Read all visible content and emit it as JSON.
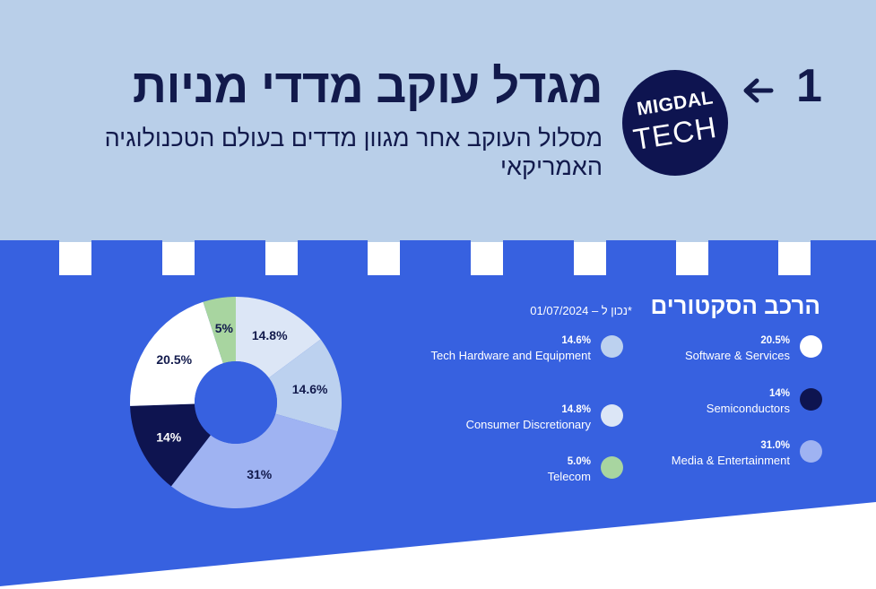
{
  "header": {
    "title": "מגדל עוקב מדדי מניות",
    "subtitle": "מסלול העוקב אחר מגוון מדדים בעולם הטכנולוגיה האמריקאי",
    "page_number": "1",
    "logo": {
      "line1": "MIGDAL",
      "line2": "TECH"
    }
  },
  "legend": {
    "title": "הרכב הסקטורים",
    "date_note": "*נכון ל – 01/07/2024",
    "items": [
      {
        "pct": "20.5%",
        "label": "Software & Services",
        "color": "#ffffff"
      },
      {
        "pct": "14%",
        "label": "Semiconductors",
        "color": "#0e1450"
      },
      {
        "pct": "31.0%",
        "label": "Media & Entertainment",
        "color": "#9fb3f2"
      },
      {
        "pct": "14.6%",
        "label": "Tech Hardware and Equipment",
        "color": "#bcd1ef"
      },
      {
        "pct": "14.8%",
        "label": "Consumer Discretionary",
        "color": "#dce6f6"
      },
      {
        "pct": "5.0%",
        "label": "Telecom",
        "color": "#a8d5a0"
      }
    ]
  },
  "colors": {
    "top_band": "#b9cfe9",
    "blue_panel": "#3761e0",
    "navy": "#121a4c"
  },
  "chart_data": {
    "type": "pie",
    "donut": true,
    "title": "הרכב הסקטורים",
    "slices": [
      {
        "name": "Consumer Discretionary",
        "value": 14.8,
        "label": "14.8%",
        "color": "#dce6f6"
      },
      {
        "name": "Tech Hardware and Equipment",
        "value": 14.6,
        "label": "14.6%",
        "color": "#bcd1ef"
      },
      {
        "name": "Media & Entertainment",
        "value": 31.0,
        "label": "31%",
        "color": "#9fb3f2"
      },
      {
        "name": "Semiconductors",
        "value": 14.0,
        "label": "14%",
        "color": "#0e1450"
      },
      {
        "name": "Software & Services",
        "value": 20.5,
        "label": "20.5%",
        "color": "#ffffff"
      },
      {
        "name": "Telecom",
        "value": 5.0,
        "label": "5%",
        "color": "#a8d5a0"
      }
    ]
  }
}
